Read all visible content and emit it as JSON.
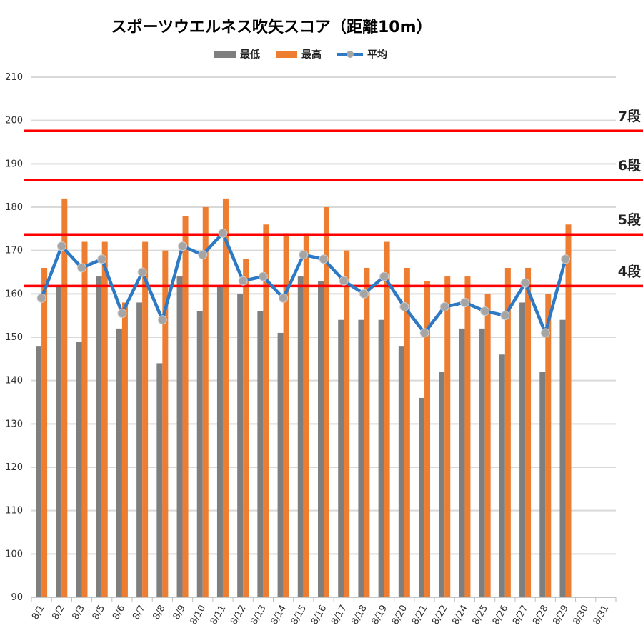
{
  "chart_data": {
    "type": "bar",
    "title": "スポーツウエルネス吹矢スコア（距離10m）",
    "categories": [
      "8/1",
      "8/2",
      "8/3",
      "8/5",
      "8/6",
      "8/7",
      "8/8",
      "8/9",
      "8/10",
      "8/11",
      "8/12",
      "8/13",
      "8/14",
      "8/15",
      "8/16",
      "8/17",
      "8/18",
      "8/19",
      "8/20",
      "8/21",
      "8/22",
      "8/24",
      "8/25",
      "8/26",
      "8/27",
      "8/28",
      "8/29",
      "8/30",
      "8/31"
    ],
    "series": [
      {
        "name": "最低",
        "type": "bar",
        "color": "#7f7f7f",
        "values": [
          148,
          162,
          149,
          164,
          152,
          158,
          144,
          164,
          156,
          162,
          160,
          156,
          151,
          164,
          163,
          154,
          154,
          154,
          148,
          136,
          142,
          152,
          152,
          146,
          158,
          142,
          154,
          null,
          null
        ]
      },
      {
        "name": "最高",
        "type": "bar",
        "color": "#ed7d31",
        "values": [
          166,
          182,
          172,
          172,
          158,
          172,
          170,
          178,
          180,
          182,
          168,
          176,
          174,
          174,
          180,
          170,
          166,
          172,
          166,
          163,
          164,
          164,
          160,
          166,
          166,
          160,
          176,
          null,
          null
        ]
      },
      {
        "name": "平均",
        "type": "line",
        "color": "#2e79c4",
        "marker_color": "#a5a5a5",
        "values": [
          159,
          171,
          166,
          168,
          155.5,
          165,
          154,
          171,
          169,
          174,
          163,
          164,
          159,
          169,
          168,
          163,
          160,
          164,
          157,
          151,
          157,
          158,
          156,
          155,
          162.5,
          151,
          168,
          null,
          null
        ]
      }
    ],
    "ylim": [
      90,
      210
    ],
    "yticks": [
      90,
      100,
      110,
      120,
      130,
      140,
      150,
      160,
      170,
      180,
      190,
      200,
      210
    ],
    "grid": true,
    "legend": "top",
    "reference_lines": [
      {
        "value": 161.8,
        "label": "4段",
        "color": "#ff0000"
      },
      {
        "value": 173.7,
        "label": "5段",
        "color": "#ff0000"
      },
      {
        "value": 186.3,
        "label": "6段",
        "color": "#ff0000"
      },
      {
        "value": 197.6,
        "label": "7段",
        "color": "#ff0000"
      }
    ]
  }
}
